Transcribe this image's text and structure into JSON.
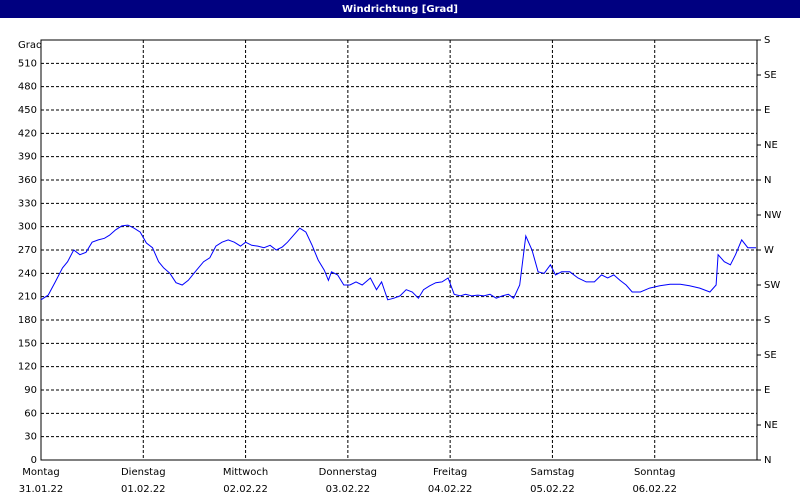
{
  "chart_data": {
    "type": "line",
    "title": "Windrichtung [Grad]",
    "y_label": "Grad",
    "color": "#0000ff",
    "grid": true,
    "xlim": [
      0,
      7
    ],
    "xticks": [
      {
        "value": 0,
        "label": "Montag",
        "date": "31.01.22"
      },
      {
        "value": 1,
        "label": "Dienstag",
        "date": "01.02.22"
      },
      {
        "value": 2,
        "label": "Mittwoch",
        "date": "02.02.22"
      },
      {
        "value": 3,
        "label": "Donnerstag",
        "date": "03.02.22"
      },
      {
        "value": 4,
        "label": "Freitag",
        "date": "04.02.22"
      },
      {
        "value": 5,
        "label": "Samstag",
        "date": "05.02.22"
      },
      {
        "value": 6,
        "label": "Sonntag",
        "date": "06.02.22"
      }
    ],
    "ylim": [
      0,
      540
    ],
    "yticks": [
      0,
      30,
      60,
      90,
      120,
      150,
      180,
      210,
      240,
      270,
      300,
      330,
      360,
      390,
      420,
      450,
      480,
      510
    ],
    "y2lim": [
      0,
      540
    ],
    "y2ticks": [
      {
        "value": 0,
        "label": "N"
      },
      {
        "value": 45,
        "label": "NE"
      },
      {
        "value": 90,
        "label": "E"
      },
      {
        "value": 135,
        "label": "SE"
      },
      {
        "value": 180,
        "label": "S"
      },
      {
        "value": 225,
        "label": "SW"
      },
      {
        "value": 270,
        "label": "W"
      },
      {
        "value": 315,
        "label": "NW"
      },
      {
        "value": 360,
        "label": "N"
      },
      {
        "value": 405,
        "label": "NE"
      },
      {
        "value": 450,
        "label": "E"
      },
      {
        "value": 495,
        "label": "SE"
      },
      {
        "value": 540,
        "label": "S"
      }
    ],
    "x": [
      0,
      0.07,
      0.14,
      0.21,
      0.26,
      0.32,
      0.38,
      0.44,
      0.5,
      0.56,
      0.62,
      0.67,
      0.73,
      0.79,
      0.85,
      0.91,
      0.97,
      1.03,
      1.09,
      1.15,
      1.2,
      1.26,
      1.32,
      1.38,
      1.44,
      1.52,
      1.59,
      1.65,
      1.71,
      1.77,
      1.83,
      1.89,
      1.95,
      2.0,
      2.06,
      2.12,
      2.18,
      2.24,
      2.3,
      2.36,
      2.41,
      2.47,
      2.53,
      2.59,
      2.65,
      2.71,
      2.77,
      2.81,
      2.84,
      2.9,
      2.96,
      3.02,
      3.08,
      3.14,
      3.22,
      3.28,
      3.33,
      3.39,
      3.45,
      3.51,
      3.57,
      3.63,
      3.69,
      3.74,
      3.8,
      3.86,
      3.92,
      3.98,
      4.04,
      4.1,
      4.15,
      4.21,
      4.27,
      4.33,
      4.39,
      4.45,
      4.51,
      4.57,
      4.62,
      4.68,
      4.74,
      4.8,
      4.86,
      4.92,
      4.98,
      5.03,
      5.09,
      5.17,
      5.25,
      5.33,
      5.41,
      5.48,
      5.54,
      5.6,
      5.66,
      5.72,
      5.78,
      5.86,
      5.95,
      6.05,
      6.15,
      6.25,
      6.34,
      6.44,
      6.54,
      6.6,
      6.62,
      6.68,
      6.74,
      6.79,
      6.85,
      6.91,
      6.99
    ],
    "values": [
      206,
      212,
      229,
      247,
      255,
      270,
      264,
      267,
      280,
      283,
      285,
      289,
      296,
      301,
      302,
      298,
      293,
      279,
      273,
      255,
      247,
      240,
      228,
      225,
      231,
      244,
      255,
      260,
      275,
      280,
      283,
      280,
      275,
      280,
      276,
      275,
      273,
      276,
      270,
      274,
      280,
      289,
      298,
      293,
      276,
      257,
      244,
      231,
      242,
      238,
      225,
      225,
      229,
      225,
      234,
      219,
      229,
      206,
      208,
      211,
      219,
      216,
      208,
      219,
      224,
      228,
      229,
      234,
      213,
      211,
      213,
      211,
      212,
      211,
      213,
      208,
      211,
      213,
      208,
      225,
      288,
      270,
      242,
      240,
      251,
      238,
      242,
      242,
      234,
      229,
      229,
      238,
      234,
      238,
      231,
      225,
      216,
      216,
      221,
      224,
      226,
      226,
      224,
      221,
      216,
      225,
      264,
      255,
      251,
      264,
      283,
      273,
      273
    ]
  }
}
